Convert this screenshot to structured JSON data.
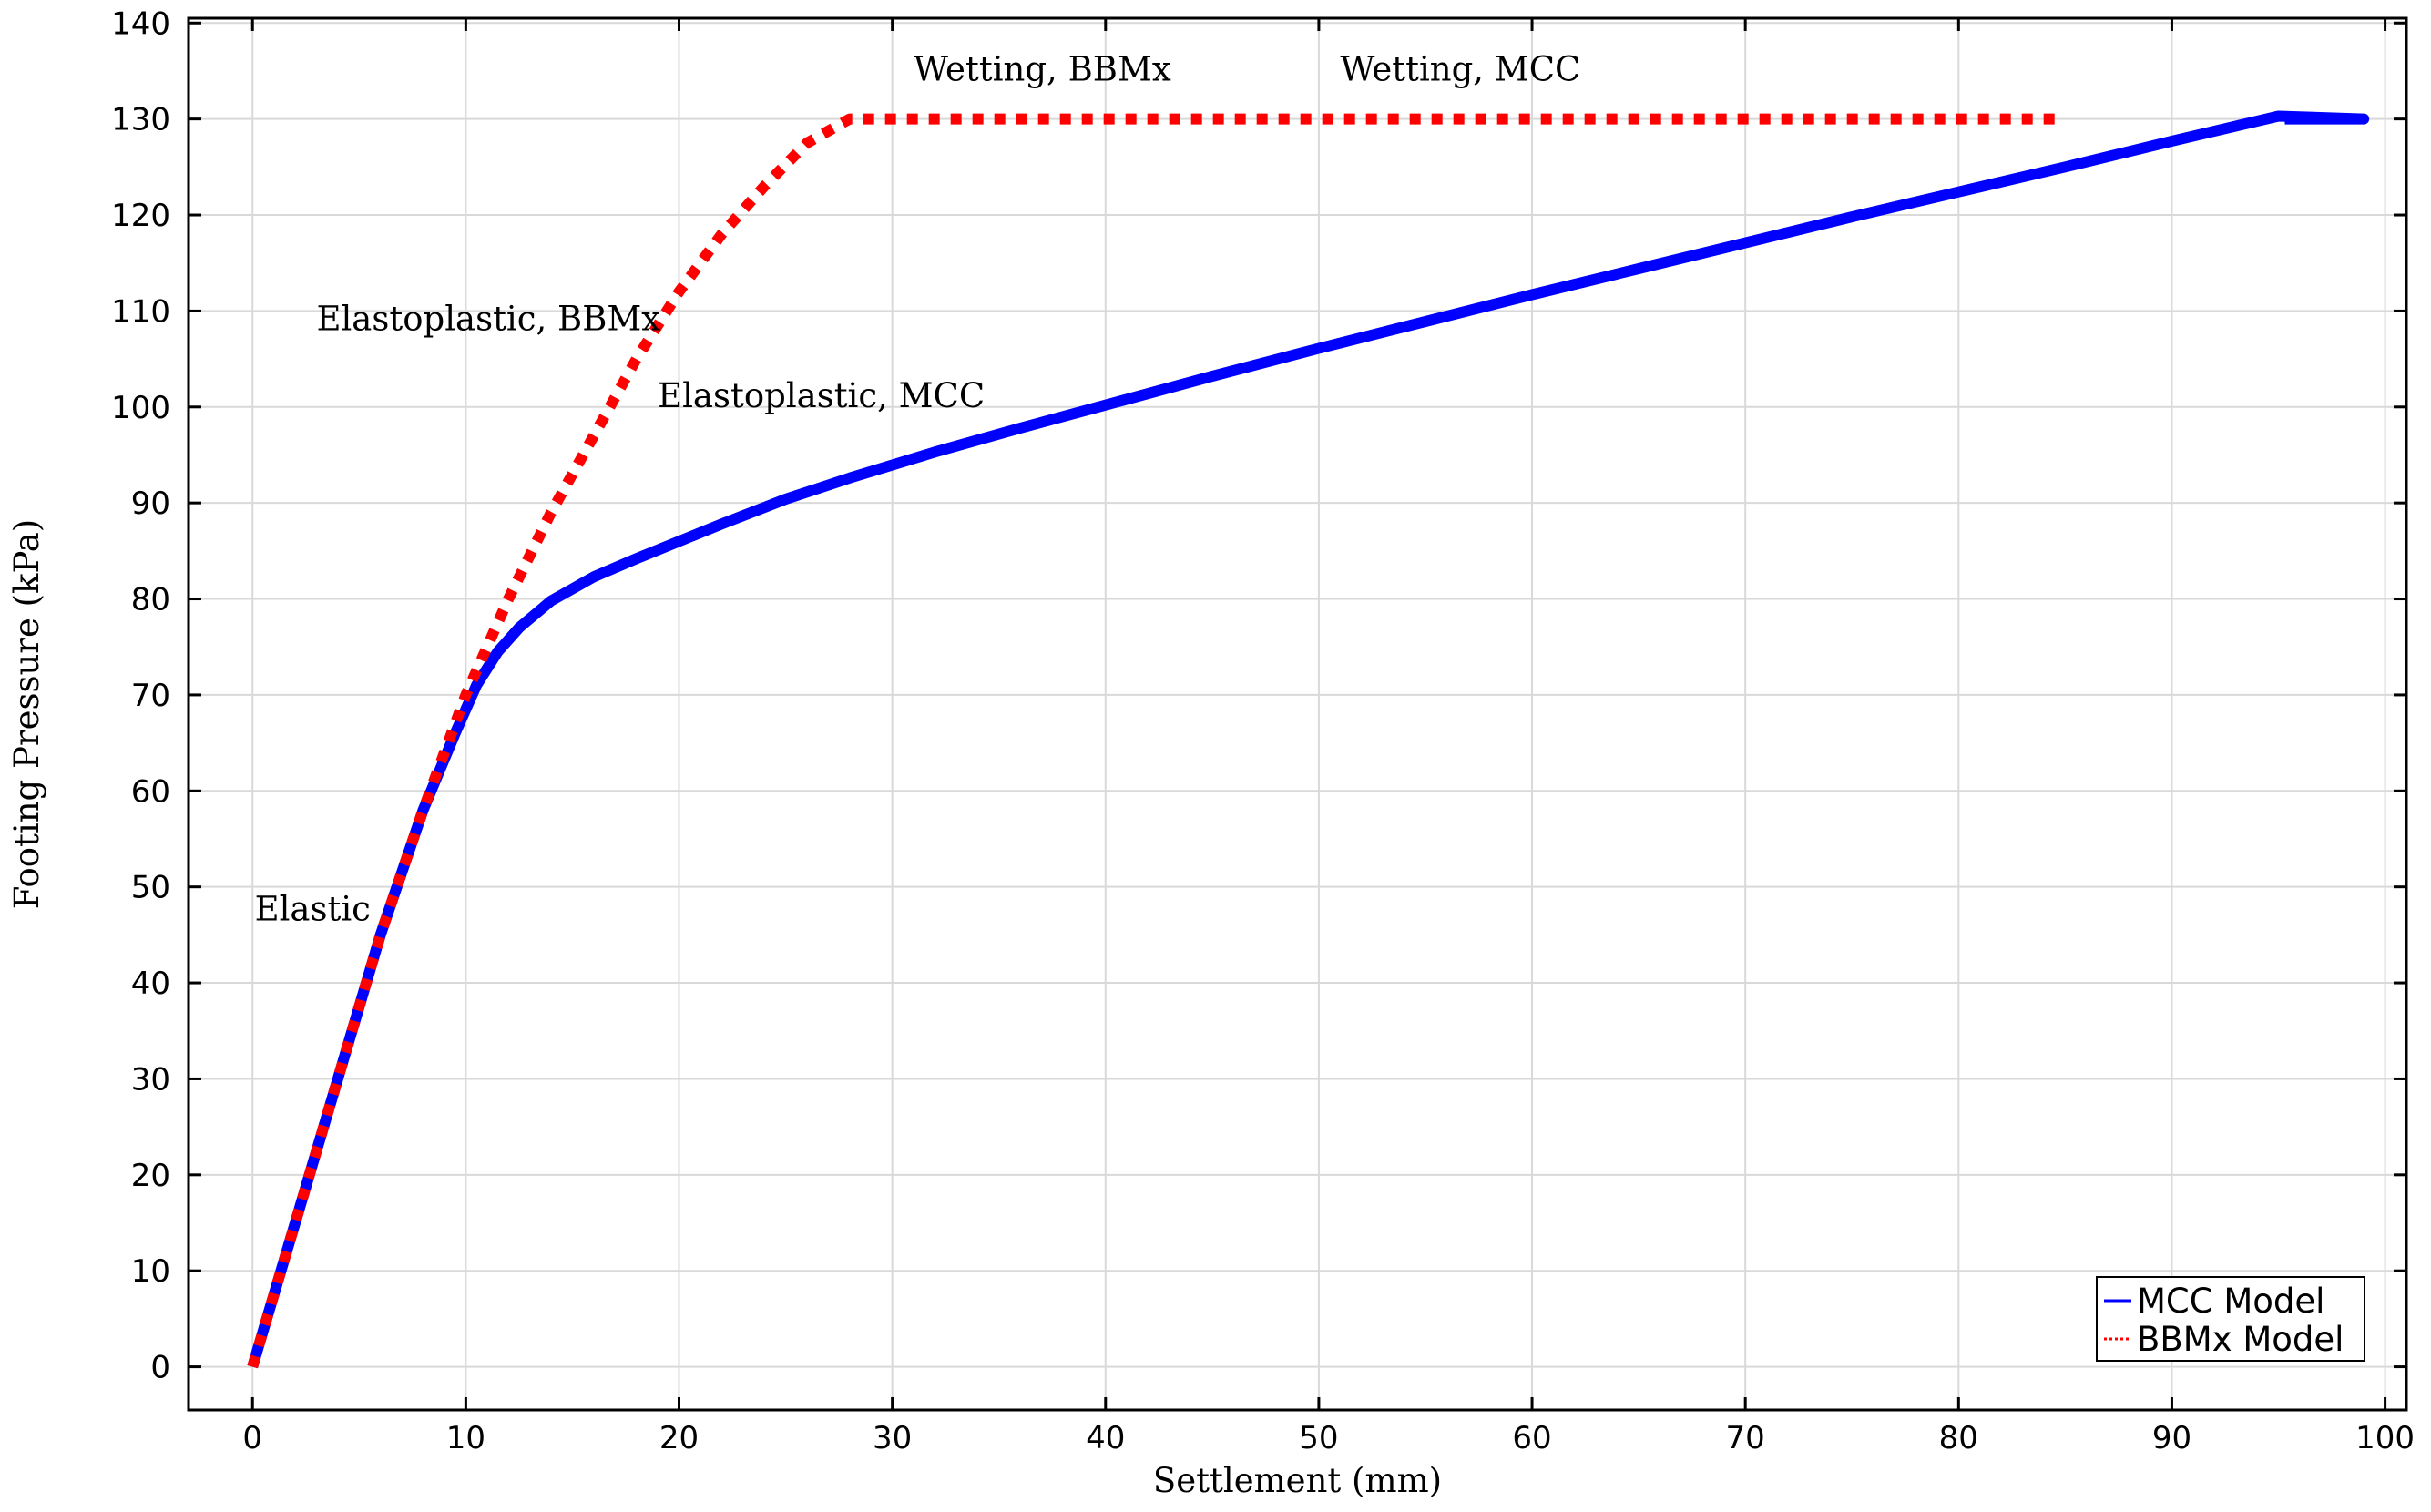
{
  "chart_data": {
    "type": "line",
    "xlabel": "Settlement (mm)",
    "ylabel": "Footing Pressure (kPa)",
    "xlim": [
      -3,
      101
    ],
    "ylim": [
      -4.5,
      140.5
    ],
    "xticks": [
      0,
      10,
      20,
      30,
      40,
      50,
      60,
      70,
      80,
      90,
      100
    ],
    "yticks": [
      0,
      10,
      20,
      30,
      40,
      50,
      60,
      70,
      80,
      90,
      100,
      110,
      120,
      130,
      140
    ],
    "grid": true,
    "legend_position": "bottom-right",
    "series": [
      {
        "name": "MCC Model",
        "color": "#0000ff",
        "style": "solid",
        "x": [
          0,
          2,
          4,
          6,
          8,
          9.5,
          10.5,
          11.5,
          12.5,
          14,
          16,
          18,
          20,
          22,
          25,
          28,
          32,
          36,
          40,
          45,
          50,
          55,
          60,
          65,
          70,
          75,
          80,
          85,
          90,
          95,
          99,
          95.3
        ],
        "y": [
          0,
          15,
          30,
          45,
          58,
          66,
          71,
          74.5,
          77,
          79.8,
          82.3,
          84.2,
          86,
          87.8,
          90.4,
          92.6,
          95.3,
          97.8,
          100.2,
          103.2,
          106.1,
          108.9,
          111.7,
          114.4,
          117.1,
          119.8,
          122.4,
          125,
          127.7,
          130.3,
          130,
          130
        ]
      },
      {
        "name": "BBMx Model",
        "color": "#ff0000",
        "style": "dotted",
        "x": [
          0,
          2,
          4,
          6,
          8,
          10,
          12,
          14,
          16,
          18,
          20,
          22,
          24,
          26,
          28,
          84.5
        ],
        "y": [
          0,
          15,
          30,
          45,
          58,
          70,
          80,
          89,
          97,
          105,
          112,
          118,
          123,
          127.5,
          130,
          130
        ]
      }
    ],
    "annotations": [
      {
        "text": "Wetting, BBMx",
        "x": 31,
        "y": 134
      },
      {
        "text": "Wetting, MCC",
        "x": 51,
        "y": 134
      },
      {
        "text": "Elastoplastic, BBMx",
        "x": 3,
        "y": 108
      },
      {
        "text": "Elastoplastic, MCC",
        "x": 19,
        "y": 100
      },
      {
        "text": "Elastic",
        "x": 0.1,
        "y": 46.5
      }
    ]
  }
}
